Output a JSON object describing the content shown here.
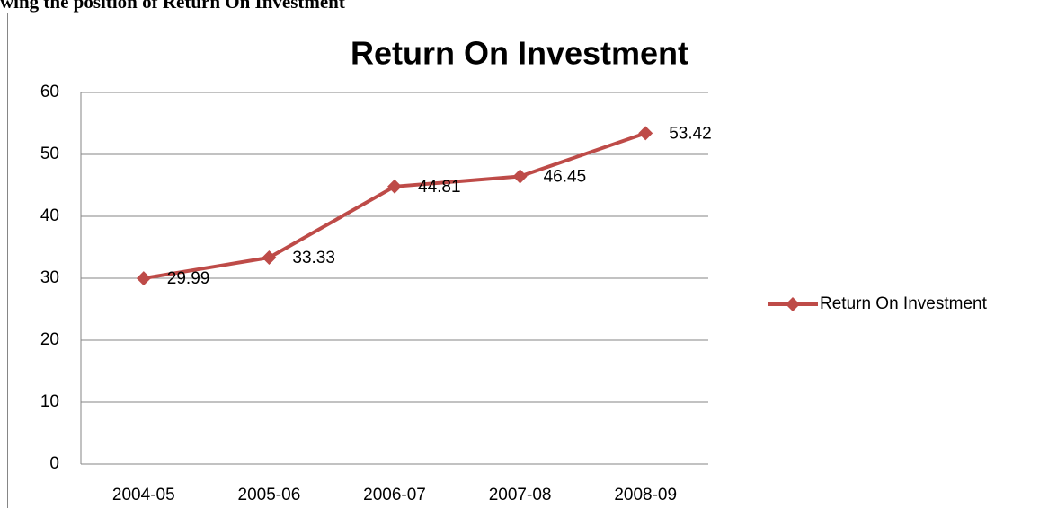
{
  "heading": "wing the position of Return On Investment",
  "chart_data": {
    "type": "line",
    "title": "Return On Investment",
    "categories": [
      "2004-05",
      "2005-06",
      "2006-07",
      "2007-08",
      "2008-09"
    ],
    "series": [
      {
        "name": "Return On Investment",
        "color": "#be4b48",
        "values": [
          29.99,
          33.33,
          44.81,
          46.45,
          53.42
        ]
      }
    ],
    "ylim": [
      0,
      60
    ],
    "yticks": [
      0,
      10,
      20,
      30,
      40,
      50,
      60
    ],
    "grid": true,
    "legend": "right",
    "data_labels": true
  }
}
